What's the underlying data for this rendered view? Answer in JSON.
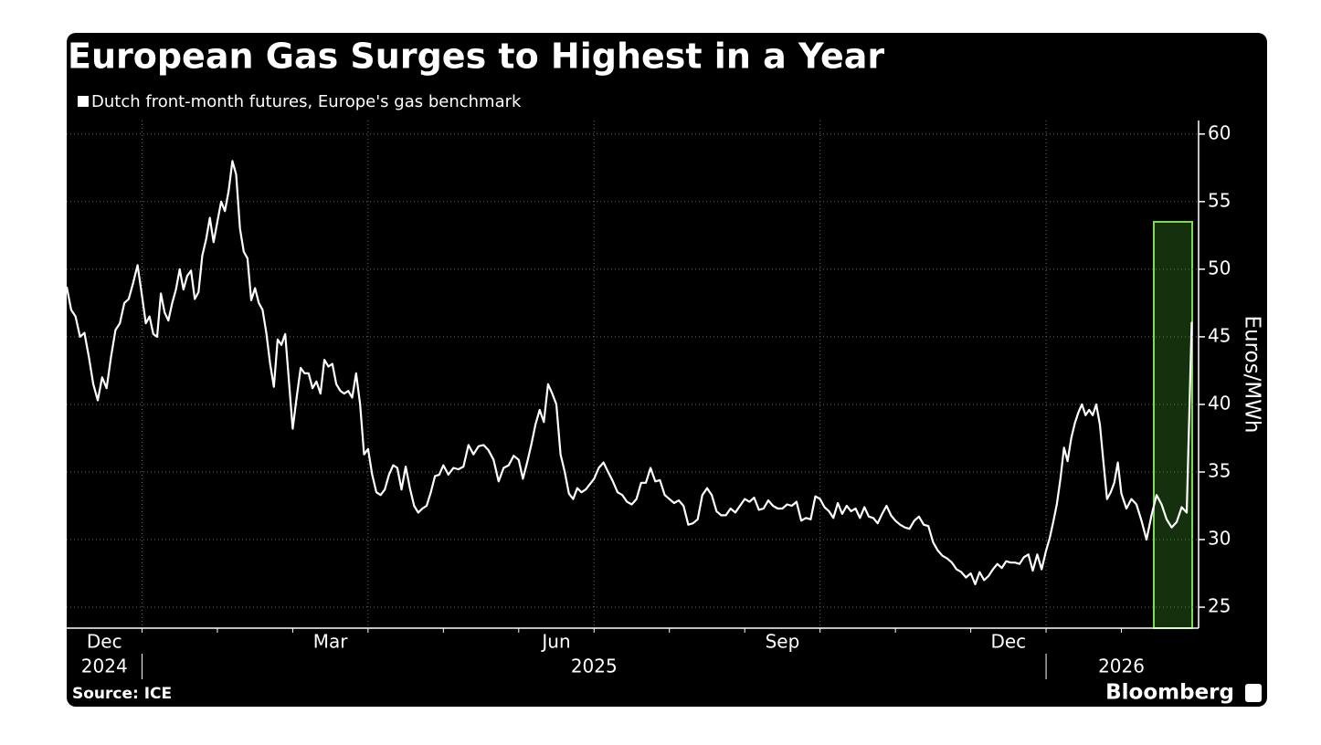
{
  "chart_data": {
    "type": "line",
    "title": "European Gas Surges to Highest in a Year",
    "y_label": "Euros/MWh",
    "source": "Source: ICE",
    "brand": "Bloomberg",
    "xlim": [
      "2024-12",
      "2026-03"
    ],
    "xticks": [
      {
        "value": "2024-12",
        "label": "Dec"
      },
      {
        "value": "2025-03",
        "label": "Mar"
      },
      {
        "value": "2025-06",
        "label": "Jun"
      },
      {
        "value": "2025-09",
        "label": "Sep"
      },
      {
        "value": "2025-12",
        "label": "Dec"
      }
    ],
    "xgrid": [
      "2025-01",
      "2025-04",
      "2025-07",
      "2025-10",
      "2026-01"
    ],
    "year_breaks": [
      "2025-01",
      "2026-01"
    ],
    "year_labels": [
      "2024",
      "2025",
      "2026"
    ],
    "ylim": [
      23.45,
      61
    ],
    "yticks": [
      25,
      30,
      35,
      40,
      45,
      50,
      55,
      60
    ],
    "grid": true,
    "x": [
      "2024-12",
      "2024-12",
      "2024-12",
      "2024-12",
      "2024-12",
      "2024-12",
      "2024-12",
      "2024-12",
      "2024-12",
      "2024-12",
      "2024-12",
      "2024-12",
      "2024-12",
      "2024-12",
      "2024-12",
      "2024-12",
      "2024-12",
      "2025-01",
      "2025-01",
      "2025-01",
      "2025-01",
      "2025-01",
      "2025-01",
      "2025-01",
      "2025-01",
      "2025-01",
      "2025-01",
      "2025-01",
      "2025-01",
      "2025-01",
      "2025-01",
      "2025-01",
      "2025-01",
      "2025-01",
      "2025-01",
      "2025-01",
      "2025-01",
      "2025-02",
      "2025-02",
      "2025-02",
      "2025-02",
      "2025-02",
      "2025-02",
      "2025-02",
      "2025-02",
      "2025-02",
      "2025-02",
      "2025-02",
      "2025-02",
      "2025-02",
      "2025-02",
      "2025-02",
      "2025-02",
      "2025-02",
      "2025-02",
      "2025-02",
      "2025-02",
      "2025-03",
      "2025-03",
      "2025-03",
      "2025-03",
      "2025-03",
      "2025-03",
      "2025-03",
      "2025-03",
      "2025-03",
      "2025-03",
      "2025-03",
      "2025-03",
      "2025-03",
      "2025-03",
      "2025-03",
      "2025-03",
      "2025-03",
      "2025-03",
      "2025-03",
      "2025-04",
      "2025-04",
      "2025-04",
      "2025-04",
      "2025-04",
      "2025-04",
      "2025-04",
      "2025-04",
      "2025-04",
      "2025-04",
      "2025-04",
      "2025-04",
      "2025-04",
      "2025-04",
      "2025-04",
      "2025-04",
      "2025-04",
      "2025-04",
      "2025-05",
      "2025-05",
      "2025-05",
      "2025-05",
      "2025-05",
      "2025-05",
      "2025-05",
      "2025-05",
      "2025-05",
      "2025-05",
      "2025-05",
      "2025-05",
      "2025-05",
      "2025-05",
      "2025-05",
      "2025-06",
      "2025-06",
      "2025-06",
      "2025-06",
      "2025-06",
      "2025-06",
      "2025-06",
      "2025-06",
      "2025-06",
      "2025-06",
      "2025-06",
      "2025-06",
      "2025-06",
      "2025-06",
      "2025-06",
      "2025-06",
      "2025-06",
      "2025-06",
      "2025-07",
      "2025-07",
      "2025-07",
      "2025-07",
      "2025-07",
      "2025-07",
      "2025-07",
      "2025-07",
      "2025-07",
      "2025-07",
      "2025-07",
      "2025-07",
      "2025-07",
      "2025-07",
      "2025-07",
      "2025-07",
      "2025-08",
      "2025-08",
      "2025-08",
      "2025-08",
      "2025-08",
      "2025-08",
      "2025-08",
      "2025-08",
      "2025-08",
      "2025-08",
      "2025-08",
      "2025-08",
      "2025-08",
      "2025-08",
      "2025-08",
      "2025-08",
      "2025-09",
      "2025-09",
      "2025-09",
      "2025-09",
      "2025-09",
      "2025-09",
      "2025-09",
      "2025-09",
      "2025-09",
      "2025-09",
      "2025-09",
      "2025-09",
      "2025-09",
      "2025-09",
      "2025-09",
      "2025-09",
      "2025-10",
      "2025-10",
      "2025-10",
      "2025-10",
      "2025-10",
      "2025-10",
      "2025-10",
      "2025-10",
      "2025-10",
      "2025-10",
      "2025-10",
      "2025-10",
      "2025-10",
      "2025-10",
      "2025-10",
      "2025-10",
      "2025-10",
      "2025-11",
      "2025-11",
      "2025-11",
      "2025-11",
      "2025-11",
      "2025-11",
      "2025-11",
      "2025-11",
      "2025-11",
      "2025-11",
      "2025-11",
      "2025-11",
      "2025-11",
      "2025-11",
      "2025-11",
      "2025-11",
      "2025-12",
      "2025-12",
      "2025-12",
      "2025-12",
      "2025-12",
      "2025-12",
      "2025-12",
      "2025-12",
      "2025-12",
      "2025-12",
      "2025-12",
      "2025-12",
      "2025-12",
      "2025-12",
      "2025-12",
      "2025-12",
      "2025-12",
      "2026-01",
      "2026-01",
      "2026-01",
      "2026-01",
      "2026-01",
      "2026-01",
      "2026-01",
      "2026-01",
      "2026-01",
      "2026-01",
      "2026-01",
      "2026-01",
      "2026-01",
      "2026-01",
      "2026-01",
      "2026-01",
      "2026-01",
      "2026-01",
      "2026-01",
      "2026-01",
      "2026-01",
      "2026-02",
      "2026-02",
      "2026-02",
      "2026-02",
      "2026-02",
      "2026-02",
      "2026-02",
      "2026-02",
      "2026-02",
      "2026-02",
      "2026-02",
      "2026-02",
      "2026-02",
      "2026-02",
      "2026-02"
    ],
    "series": [
      {
        "name": "Dutch front-month futures, Europe's gas benchmark",
        "color": "#ffffff",
        "values": [
          48.7,
          47,
          46.5,
          45,
          45.3,
          43.5,
          41.5,
          40.3,
          42,
          41.2,
          43.5,
          45.5,
          46,
          47.5,
          47.8,
          49,
          50.3,
          48,
          46,
          46.5,
          45.2,
          45,
          48.2,
          46.8,
          46.2,
          47.5,
          48.5,
          50,
          48.5,
          49.5,
          49.9,
          47.8,
          48.3,
          51,
          52.2,
          53.8,
          52,
          53.5,
          55,
          54.3,
          55.8,
          58,
          57,
          53,
          51.3,
          50.8,
          47.7,
          48.6,
          47.5,
          47,
          45.3,
          43,
          41.3,
          44.8,
          44.4,
          45.2,
          41.7,
          38.2,
          40.5,
          42.7,
          42.3,
          42.3,
          41.2,
          41.7,
          40.8,
          43.3,
          42.8,
          43,
          41.5,
          41,
          40.8,
          41,
          40.5,
          42.3,
          40,
          36.3,
          36.7,
          34.8,
          33.5,
          33.3,
          33.7,
          34.8,
          35.5,
          35.3,
          33.7,
          35.4,
          33.8,
          32.5,
          32,
          32.3,
          32.5,
          33.5,
          34.7,
          34.8,
          35.5,
          34.8,
          35.3,
          35.2,
          35.4,
          37,
          36.3,
          36.9,
          37,
          36.6,
          35.9,
          34.3,
          35.3,
          35.5,
          36.2,
          35.9,
          34.5,
          35.7,
          37,
          38.5,
          39.6,
          38.7,
          41.5,
          40.8,
          40,
          36.3,
          35,
          33.4,
          33,
          33.8,
          33.5,
          33.7,
          34.1,
          34.5,
          35.3,
          35.7,
          35,
          34.3,
          33.5,
          33.3,
          32.8,
          32.6,
          33,
          34.2,
          34.2,
          35.3,
          34.3,
          34.4,
          33.3,
          33,
          32.7,
          32.9,
          32.5,
          31.1,
          31.2,
          31.5,
          33.3,
          33.8,
          33.3,
          32.1,
          31.8,
          31.8,
          32.3,
          32,
          32.5,
          33,
          32.8,
          33.1,
          32.2,
          32.3,
          32.9,
          32.5,
          32.3,
          32.3,
          32.6,
          32.5,
          32.8,
          31.4,
          31.6,
          31.5,
          33.2,
          33,
          32.4,
          32.1,
          31.6,
          32.7,
          31.9,
          32.5,
          32.1,
          32.3,
          31.6,
          32.4,
          31.7,
          31.6,
          31.2,
          31.9,
          32.5,
          31.8,
          31.4,
          31.1,
          30.9,
          30.8,
          31.4,
          31.7,
          31.1,
          31,
          29.8,
          29.2,
          28.8,
          28.6,
          28.3,
          27.8,
          27.6,
          27.2,
          27.5,
          26.7,
          27.6,
          27,
          27.3,
          27.8,
          28.2,
          27.9,
          28.4,
          28.3,
          28.3,
          28.2,
          28.7,
          28.9,
          27.7,
          28.9,
          27.8,
          29.2,
          30.1,
          31.3,
          32.6,
          34.5,
          36.8,
          35.8,
          37.5,
          38.6,
          39.4,
          40,
          39.2,
          39.6,
          39.2,
          40,
          38.5,
          35.7,
          33,
          33.5,
          34.2,
          35.7,
          33.4,
          32.3,
          33,
          32.6,
          31.4,
          30,
          31.8,
          33.3,
          32.6,
          31.5,
          30.9,
          31.3,
          32.4,
          32,
          46.1
        ]
      }
    ]
  }
}
